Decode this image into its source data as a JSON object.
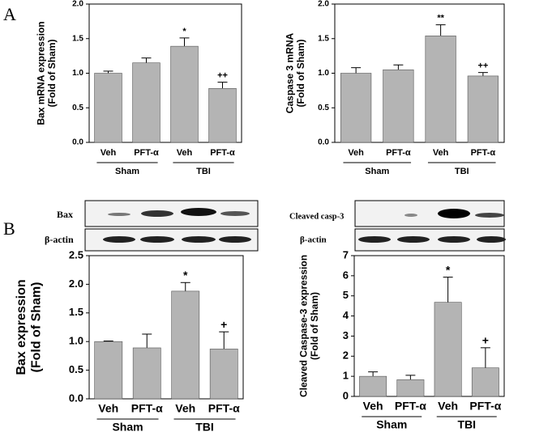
{
  "panel_labels": [
    "A",
    "B"
  ],
  "blots": [
    {
      "label": "Bax"
    },
    {
      "label": "β-actin"
    },
    {
      "label": "Cleaved casp-3"
    },
    {
      "label": "β-actin"
    }
  ],
  "chart_data": [
    {
      "type": "bar",
      "ylabel": [
        "Bax mRNA expression",
        "(Fold of Sham)"
      ],
      "categories": [
        "Veh",
        "PFT-α",
        "Veh",
        "PFT-α"
      ],
      "groups": [
        "Sham",
        "TBI"
      ],
      "values": [
        1.0,
        1.15,
        1.39,
        0.78
      ],
      "errors": [
        0.03,
        0.07,
        0.12,
        0.09
      ],
      "annotations": [
        null,
        null,
        "*",
        "++"
      ],
      "color": "#b4b4b4",
      "ylim": [
        0,
        2
      ],
      "yticks": [
        {
          "value": 0,
          "label": "0.0"
        },
        {
          "value": 0.5,
          "label": "0.5"
        },
        {
          "value": 1,
          "label": "1.0"
        },
        {
          "value": 1.5,
          "label": "1.5"
        },
        {
          "value": 2,
          "label": "2.0"
        }
      ]
    },
    {
      "type": "bar",
      "ylabel": [
        "Caspase 3 mRNA",
        "(Fold of Sham)"
      ],
      "categories": [
        "Veh",
        "PFT-α",
        "Veh",
        "PFT-α"
      ],
      "groups": [
        "Sham",
        "TBI"
      ],
      "values": [
        1.0,
        1.05,
        1.54,
        0.96
      ],
      "errors": [
        0.08,
        0.07,
        0.16,
        0.05
      ],
      "annotations": [
        null,
        null,
        "**",
        "++"
      ],
      "color": "#b4b4b4",
      "ylim": [
        0,
        2
      ],
      "yticks": [
        {
          "value": 0,
          "label": "0.0"
        },
        {
          "value": 0.5,
          "label": "0.5"
        },
        {
          "value": 1,
          "label": "1.0"
        },
        {
          "value": 1.5,
          "label": "1.5"
        },
        {
          "value": 2,
          "label": "2.0"
        }
      ]
    },
    {
      "type": "bar",
      "ylabel": [
        "Bax expression",
        "(Fold of Sham)"
      ],
      "categories": [
        "Veh",
        "PFT-α",
        "Veh",
        "PFT-α"
      ],
      "groups": [
        "Sham",
        "TBI"
      ],
      "values": [
        1.0,
        0.89,
        1.88,
        0.87
      ],
      "errors": [
        0.01,
        0.24,
        0.15,
        0.3
      ],
      "annotations": [
        null,
        null,
        "*",
        "+"
      ],
      "color": "#b4b4b4",
      "ylim": [
        0,
        2.5
      ],
      "yticks": [
        {
          "value": 0,
          "label": "0.0"
        },
        {
          "value": 0.5,
          "label": "0.5"
        },
        {
          "value": 1,
          "label": "1.0"
        },
        {
          "value": 1.5,
          "label": "1.5"
        },
        {
          "value": 2,
          "label": "2.0"
        },
        {
          "value": 2.5,
          "label": "2.5"
        }
      ]
    },
    {
      "type": "bar",
      "ylabel": [
        "Cleaved Caspase-3 expression",
        "(Fold of Sham)"
      ],
      "categories": [
        "Veh",
        "PFT-α",
        "Veh",
        "PFT-α"
      ],
      "groups": [
        "Sham",
        "TBI"
      ],
      "values": [
        1.0,
        0.83,
        4.68,
        1.42
      ],
      "errors": [
        0.22,
        0.22,
        1.25,
        1.0
      ],
      "annotations": [
        null,
        null,
        "*",
        "+"
      ],
      "color": "#b4b4b4",
      "ylim": [
        0,
        7
      ],
      "yticks": [
        0,
        1,
        2,
        3,
        4,
        5,
        6,
        7
      ]
    }
  ]
}
